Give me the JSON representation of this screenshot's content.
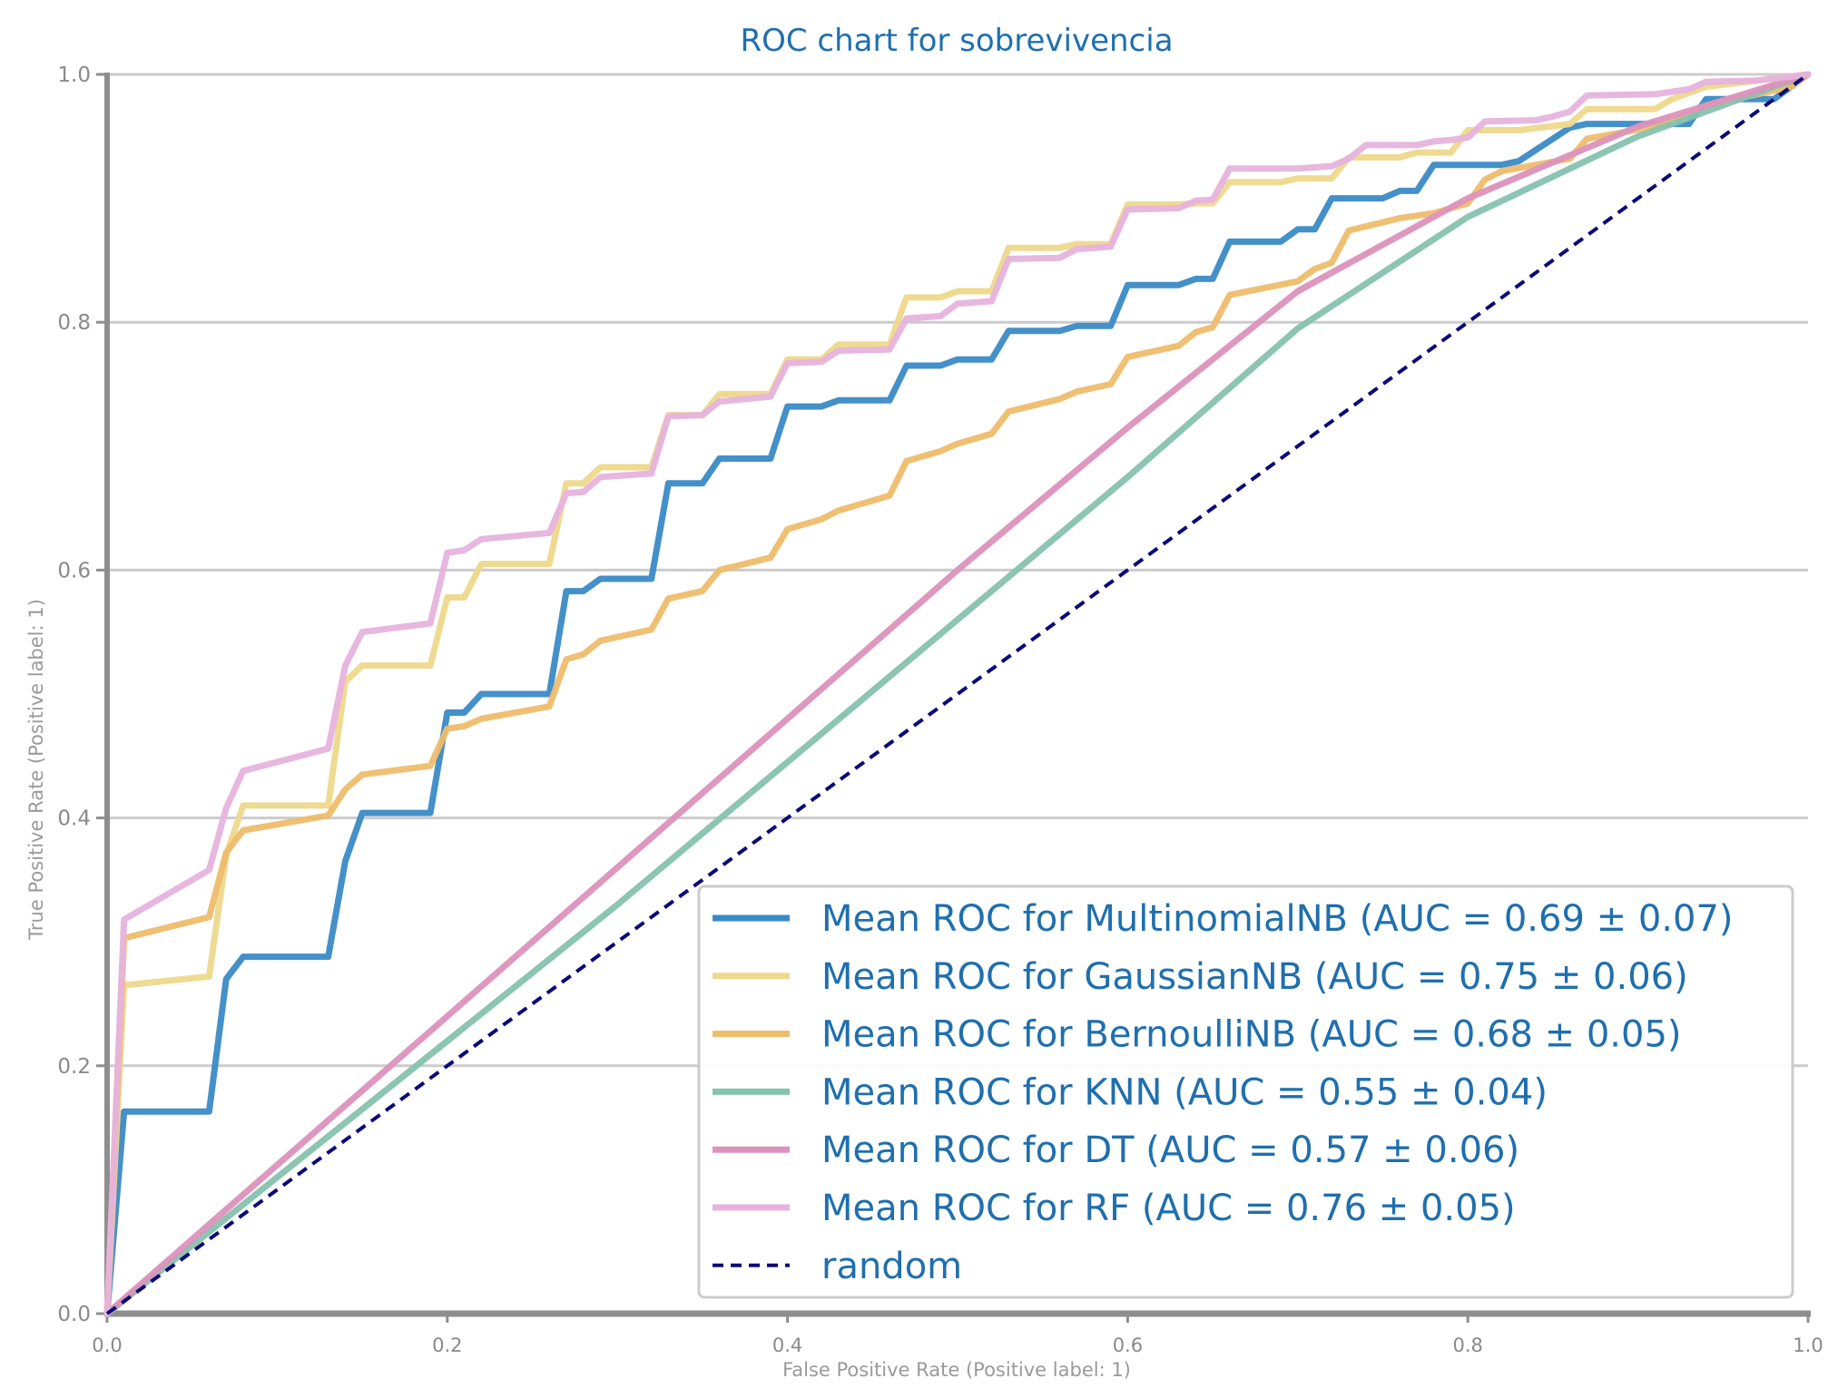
{
  "chart_data": {
    "type": "line",
    "title": "ROC chart for sobrevivencia",
    "xlabel": "False Positive Rate (Positive label: 1)",
    "ylabel": "True Positive Rate (Positive label: 1)",
    "xlim": [
      0,
      1
    ],
    "ylim": [
      0,
      1
    ],
    "xticks": [
      "0.0",
      "0.2",
      "0.4",
      "0.6",
      "0.8",
      "1.0"
    ],
    "yticks": [
      "0.0",
      "0.2",
      "0.4",
      "0.6",
      "0.8",
      "1.0"
    ],
    "grid": "y",
    "legend_position": "lower-right",
    "series": [
      {
        "name": "Mean ROC for MultinomialNB (AUC = 0.69 ± 0.07)",
        "color": "#3a8ac6",
        "style": "solid",
        "x": [
          0,
          0.01,
          0.06,
          0.07,
          0.08,
          0.13,
          0.14,
          0.15,
          0.19,
          0.2,
          0.21,
          0.22,
          0.26,
          0.27,
          0.28,
          0.29,
          0.32,
          0.33,
          0.35,
          0.36,
          0.39,
          0.4,
          0.42,
          0.43,
          0.46,
          0.47,
          0.49,
          0.5,
          0.52,
          0.53,
          0.56,
          0.57,
          0.59,
          0.6,
          0.63,
          0.64,
          0.65,
          0.66,
          0.69,
          0.7,
          0.71,
          0.72,
          0.75,
          0.76,
          0.77,
          0.78,
          0.79,
          0.82,
          0.83,
          0.86,
          0.87,
          0.93,
          0.94,
          0.98,
          1.0
        ],
        "y": [
          0,
          0.163,
          0.163,
          0.27,
          0.288,
          0.288,
          0.365,
          0.404,
          0.404,
          0.485,
          0.485,
          0.5,
          0.5,
          0.583,
          0.583,
          0.593,
          0.593,
          0.67,
          0.67,
          0.69,
          0.69,
          0.732,
          0.732,
          0.737,
          0.737,
          0.765,
          0.765,
          0.77,
          0.77,
          0.793,
          0.793,
          0.797,
          0.797,
          0.83,
          0.83,
          0.835,
          0.835,
          0.865,
          0.865,
          0.875,
          0.875,
          0.9,
          0.9,
          0.906,
          0.906,
          0.927,
          0.927,
          0.927,
          0.93,
          0.957,
          0.96,
          0.96,
          0.98,
          0.98,
          1.0
        ]
      },
      {
        "name": "Mean ROC for GaussianNB (AUC = 0.75 ± 0.06)",
        "color": "#eed88c",
        "style": "solid",
        "x": [
          0,
          0.01,
          0.06,
          0.07,
          0.08,
          0.13,
          0.14,
          0.15,
          0.19,
          0.2,
          0.21,
          0.22,
          0.26,
          0.27,
          0.28,
          0.29,
          0.32,
          0.33,
          0.35,
          0.36,
          0.39,
          0.4,
          0.42,
          0.43,
          0.46,
          0.47,
          0.49,
          0.5,
          0.52,
          0.53,
          0.56,
          0.57,
          0.59,
          0.6,
          0.63,
          0.64,
          0.65,
          0.66,
          0.69,
          0.7,
          0.72,
          0.73,
          0.76,
          0.77,
          0.79,
          0.8,
          0.82,
          0.83,
          0.86,
          0.87,
          0.91,
          0.92,
          0.93,
          0.94,
          1.0
        ],
        "y": [
          0,
          0.265,
          0.272,
          0.37,
          0.41,
          0.41,
          0.51,
          0.523,
          0.523,
          0.578,
          0.578,
          0.605,
          0.605,
          0.67,
          0.67,
          0.683,
          0.683,
          0.725,
          0.725,
          0.742,
          0.742,
          0.77,
          0.77,
          0.782,
          0.782,
          0.82,
          0.82,
          0.825,
          0.825,
          0.86,
          0.86,
          0.863,
          0.863,
          0.895,
          0.895,
          0.896,
          0.896,
          0.913,
          0.913,
          0.916,
          0.916,
          0.933,
          0.933,
          0.937,
          0.937,
          0.955,
          0.955,
          0.955,
          0.96,
          0.972,
          0.972,
          0.98,
          0.985,
          0.99,
          1.0
        ]
      },
      {
        "name": "Mean ROC for BernoulliNB (AUC = 0.68 ± 0.05)",
        "color": "#eebd6b",
        "style": "solid",
        "x": [
          0,
          0.01,
          0.06,
          0.07,
          0.08,
          0.13,
          0.14,
          0.15,
          0.19,
          0.2,
          0.21,
          0.22,
          0.26,
          0.27,
          0.28,
          0.29,
          0.32,
          0.33,
          0.35,
          0.36,
          0.39,
          0.4,
          0.42,
          0.43,
          0.46,
          0.47,
          0.49,
          0.5,
          0.52,
          0.53,
          0.56,
          0.57,
          0.59,
          0.6,
          0.63,
          0.64,
          0.65,
          0.66,
          0.7,
          0.71,
          0.72,
          0.73,
          0.76,
          0.77,
          0.78,
          0.79,
          0.8,
          0.81,
          0.82,
          0.86,
          0.87,
          0.91,
          0.92,
          0.94,
          0.99,
          1.0
        ],
        "y": [
          0,
          0.303,
          0.32,
          0.372,
          0.39,
          0.402,
          0.423,
          0.435,
          0.442,
          0.472,
          0.474,
          0.48,
          0.49,
          0.528,
          0.532,
          0.543,
          0.552,
          0.577,
          0.583,
          0.6,
          0.61,
          0.633,
          0.641,
          0.648,
          0.66,
          0.688,
          0.696,
          0.702,
          0.71,
          0.728,
          0.738,
          0.744,
          0.75,
          0.772,
          0.781,
          0.792,
          0.796,
          0.822,
          0.833,
          0.843,
          0.848,
          0.874,
          0.884,
          0.886,
          0.888,
          0.892,
          0.896,
          0.915,
          0.922,
          0.932,
          0.948,
          0.958,
          0.962,
          0.975,
          0.99,
          1.0
        ]
      },
      {
        "name": "Mean ROC for KNN (AUC = 0.55 ± 0.04)",
        "color": "#86c2ae",
        "style": "solid",
        "x": [
          0,
          0.1,
          0.2,
          0.3,
          0.4,
          0.5,
          0.6,
          0.7,
          0.8,
          0.9,
          1.0
        ],
        "y": [
          0,
          0.11,
          0.22,
          0.33,
          0.445,
          0.56,
          0.675,
          0.795,
          0.885,
          0.95,
          1.0
        ]
      },
      {
        "name": "Mean ROC for DT (AUC = 0.57 ± 0.06)",
        "color": "#dc92bc",
        "style": "solid",
        "x": [
          0,
          0.1,
          0.2,
          0.3,
          0.4,
          0.5,
          0.6,
          0.7,
          0.8,
          0.9,
          1.0
        ],
        "y": [
          0,
          0.12,
          0.24,
          0.36,
          0.48,
          0.6,
          0.715,
          0.825,
          0.9,
          0.958,
          1.0
        ]
      },
      {
        "name": "Mean ROC for RF (AUC = 0.76 ± 0.05)",
        "color": "#e6b3dd",
        "style": "solid",
        "x": [
          0,
          0.01,
          0.06,
          0.07,
          0.08,
          0.13,
          0.14,
          0.15,
          0.19,
          0.2,
          0.21,
          0.22,
          0.26,
          0.27,
          0.28,
          0.29,
          0.32,
          0.33,
          0.35,
          0.36,
          0.39,
          0.4,
          0.42,
          0.43,
          0.46,
          0.47,
          0.49,
          0.5,
          0.52,
          0.53,
          0.56,
          0.57,
          0.59,
          0.6,
          0.63,
          0.64,
          0.65,
          0.66,
          0.69,
          0.7,
          0.72,
          0.73,
          0.74,
          0.77,
          0.78,
          0.79,
          0.8,
          0.81,
          0.84,
          0.85,
          0.86,
          0.87,
          0.91,
          0.92,
          0.93,
          0.94,
          0.97,
          1.0
        ],
        "y": [
          0,
          0.318,
          0.358,
          0.408,
          0.438,
          0.456,
          0.523,
          0.55,
          0.557,
          0.614,
          0.616,
          0.625,
          0.63,
          0.662,
          0.663,
          0.675,
          0.678,
          0.724,
          0.725,
          0.736,
          0.74,
          0.767,
          0.768,
          0.777,
          0.778,
          0.803,
          0.805,
          0.815,
          0.817,
          0.851,
          0.852,
          0.859,
          0.861,
          0.891,
          0.892,
          0.898,
          0.899,
          0.924,
          0.924,
          0.924,
          0.926,
          0.932,
          0.943,
          0.943,
          0.946,
          0.947,
          0.949,
          0.962,
          0.963,
          0.966,
          0.97,
          0.983,
          0.984,
          0.986,
          0.988,
          0.994,
          0.995,
          1.0
        ]
      },
      {
        "name": "random",
        "color": "#0a0a78",
        "style": "dashed",
        "x": [
          0,
          1
        ],
        "y": [
          0,
          1
        ]
      }
    ]
  }
}
